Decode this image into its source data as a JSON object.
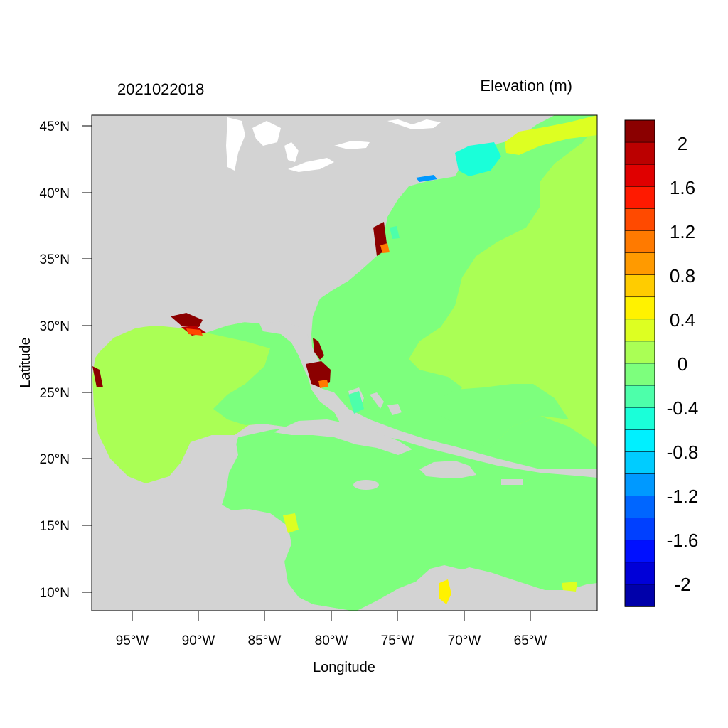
{
  "header": {
    "timestamp": "2021022018",
    "variable_label": "Elevation (m)"
  },
  "axes": {
    "xlabel": "Longitude",
    "ylabel": "Latitude",
    "x_ticks": [
      "95°W",
      "90°W",
      "85°W",
      "80°W",
      "75°W",
      "70°W",
      "65°W"
    ],
    "y_ticks": [
      "45°N",
      "40°N",
      "35°N",
      "30°N",
      "25°N",
      "20°N",
      "15°N",
      "10°N"
    ]
  },
  "colorbar": {
    "labels": [
      "2",
      "1.6",
      "1.2",
      "0.8",
      "0.4",
      "0",
      "-0.4",
      "-0.8",
      "-1.2",
      "-1.6",
      "-2"
    ],
    "colors": [
      "#8b0000",
      "#bb0000",
      "#e00000",
      "#ff1a00",
      "#ff4a00",
      "#ff7a00",
      "#ff9a00",
      "#ffcc00",
      "#fff200",
      "#ddff22",
      "#aaff55",
      "#7dff7d",
      "#4dffaa",
      "#1affd9",
      "#00f0ff",
      "#00ccff",
      "#0099ff",
      "#0066ff",
      "#0040ff",
      "#0010ff",
      "#0000d8",
      "#0000aa"
    ]
  },
  "map": {
    "land_color": "#d3d3d3",
    "ocean_base_color": "#7dff7d",
    "anomaly_color": "#aaff55",
    "surge_high_color": "#8b0000"
  }
}
